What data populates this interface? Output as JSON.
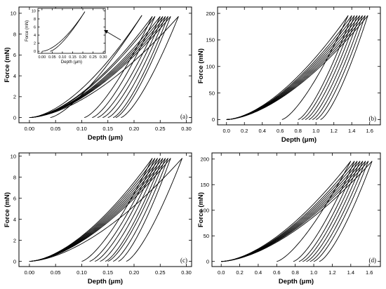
{
  "figure": {
    "panels": [
      {
        "label": "(a)",
        "xlabel": "Depth (μm)",
        "ylabel": "Force (mN)",
        "xticks": [
          "0.00",
          "0.05",
          "0.10",
          "0.15",
          "0.20",
          "0.25",
          "0.30"
        ],
        "yticks": [
          "0",
          "2",
          "4",
          "6",
          "8",
          "10"
        ],
        "xlim": [
          -0.02,
          0.31
        ],
        "ylim": [
          -0.5,
          10.6
        ],
        "inset": {
          "xlabel": "Depth (μm)",
          "ylabel": "Force (mN)",
          "xticks": [
            "0.00",
            "0.05",
            "0.10",
            "0.15",
            "0.20",
            "0.25",
            "0.30"
          ],
          "yticks": [
            "0",
            "2",
            "4",
            "6",
            "8",
            "10"
          ],
          "xlim": [
            -0.02,
            0.31
          ],
          "ylim": [
            -0.5,
            10.6
          ]
        }
      },
      {
        "label": "(b)",
        "xlabel": "Depth (μm)",
        "ylabel": "Force (mN)",
        "xticks": [
          "0.0",
          "0.2",
          "0.4",
          "0.6",
          "0.8",
          "1.0",
          "1.2",
          "1.4",
          "1.6"
        ],
        "yticks": [
          "0",
          "50",
          "100",
          "150",
          "200"
        ],
        "xlim": [
          -0.1,
          1.72
        ],
        "ylim": [
          -10,
          212
        ]
      },
      {
        "label": "(c)",
        "xlabel": "Depth (μm)",
        "ylabel": "Force (mN)",
        "xticks": [
          "0.00",
          "0.05",
          "0.10",
          "0.15",
          "0.20",
          "0.25",
          "0.30"
        ],
        "yticks": [
          "0",
          "2",
          "4",
          "6",
          "8",
          "10"
        ],
        "xlim": [
          -0.02,
          0.31
        ],
        "ylim": [
          -0.5,
          10.3
        ]
      },
      {
        "label": "(d)",
        "xlabel": "Depth (μm)",
        "ylabel": "Force (mN)",
        "xticks": [
          "0.0",
          "0.2",
          "0.4",
          "0.6",
          "0.8",
          "1.0",
          "1.2",
          "1.4",
          "1.6"
        ],
        "yticks": [
          "0",
          "50",
          "100",
          "150",
          "200"
        ],
        "xlim": [
          -0.1,
          1.72
        ],
        "ylim": [
          -10,
          212
        ]
      }
    ]
  },
  "chart_data": [
    {
      "type": "line",
      "panel": "(a)",
      "xlabel": "Depth (μm)",
      "ylabel": "Force (mN)",
      "xlim": [
        -0.02,
        0.31
      ],
      "ylim": [
        -0.5,
        10.6
      ],
      "curves": [
        {
          "hmax": 0.215,
          "hf": 0.04,
          "fmax": 9.8
        },
        {
          "hmax": 0.235,
          "hf": 0.105,
          "fmax": 9.7
        },
        {
          "hmax": 0.24,
          "hf": 0.12,
          "fmax": 9.7
        },
        {
          "hmax": 0.25,
          "hf": 0.13,
          "fmax": 9.7
        },
        {
          "hmax": 0.255,
          "hf": 0.14,
          "fmax": 9.7
        },
        {
          "hmax": 0.26,
          "hf": 0.15,
          "fmax": 9.7
        },
        {
          "hmax": 0.265,
          "hf": 0.16,
          "fmax": 9.7
        },
        {
          "hmax": 0.27,
          "hf": 0.165,
          "fmax": 9.7
        },
        {
          "hmax": 0.285,
          "hf": 0.175,
          "fmax": 9.7
        }
      ],
      "inset": {
        "curves": [
          {
            "hmax": 0.21,
            "hf": 0.04,
            "fmax": 9.8
          }
        ]
      }
    },
    {
      "type": "line",
      "panel": "(b)",
      "xlabel": "Depth (μm)",
      "ylabel": "Force (mN)",
      "xlim": [
        -0.1,
        1.72
      ],
      "ylim": [
        -10,
        212
      ],
      "curves": [
        {
          "hmax": 1.36,
          "hf": 0.62,
          "fmax": 196
        },
        {
          "hmax": 1.4,
          "hf": 0.8,
          "fmax": 196
        },
        {
          "hmax": 1.43,
          "hf": 0.84,
          "fmax": 196
        },
        {
          "hmax": 1.46,
          "hf": 0.88,
          "fmax": 196
        },
        {
          "hmax": 1.49,
          "hf": 0.92,
          "fmax": 196
        },
        {
          "hmax": 1.52,
          "hf": 0.96,
          "fmax": 196
        },
        {
          "hmax": 1.55,
          "hf": 1.0,
          "fmax": 196
        },
        {
          "hmax": 1.58,
          "hf": 1.05,
          "fmax": 196
        }
      ]
    },
    {
      "type": "line",
      "panel": "(c)",
      "xlabel": "Depth (μm)",
      "ylabel": "Force (mN)",
      "xlim": [
        -0.02,
        0.31
      ],
      "ylim": [
        -0.5,
        10.3
      ],
      "curves": [
        {
          "hmax": 0.235,
          "hf": 0.1,
          "fmax": 9.8
        },
        {
          "hmax": 0.24,
          "hf": 0.115,
          "fmax": 9.8
        },
        {
          "hmax": 0.245,
          "hf": 0.125,
          "fmax": 9.8
        },
        {
          "hmax": 0.25,
          "hf": 0.135,
          "fmax": 9.8
        },
        {
          "hmax": 0.255,
          "hf": 0.145,
          "fmax": 9.8
        },
        {
          "hmax": 0.26,
          "hf": 0.15,
          "fmax": 9.8
        },
        {
          "hmax": 0.265,
          "hf": 0.16,
          "fmax": 9.8
        },
        {
          "hmax": 0.27,
          "hf": 0.17,
          "fmax": 9.8
        },
        {
          "hmax": 0.292,
          "hf": 0.185,
          "fmax": 9.8
        }
      ]
    },
    {
      "type": "line",
      "panel": "(d)",
      "xlabel": "Depth (μm)",
      "ylabel": "Force (mN)",
      "xlim": [
        -0.1,
        1.72
      ],
      "ylim": [
        -10,
        212
      ],
      "curves": [
        {
          "hmax": 1.4,
          "hf": 0.6,
          "fmax": 196
        },
        {
          "hmax": 1.44,
          "hf": 0.78,
          "fmax": 196
        },
        {
          "hmax": 1.47,
          "hf": 0.84,
          "fmax": 196
        },
        {
          "hmax": 1.5,
          "hf": 0.88,
          "fmax": 196
        },
        {
          "hmax": 1.53,
          "hf": 0.92,
          "fmax": 196
        },
        {
          "hmax": 1.56,
          "hf": 0.96,
          "fmax": 196
        },
        {
          "hmax": 1.59,
          "hf": 1.0,
          "fmax": 196
        },
        {
          "hmax": 1.63,
          "hf": 1.06,
          "fmax": 196
        }
      ]
    }
  ]
}
